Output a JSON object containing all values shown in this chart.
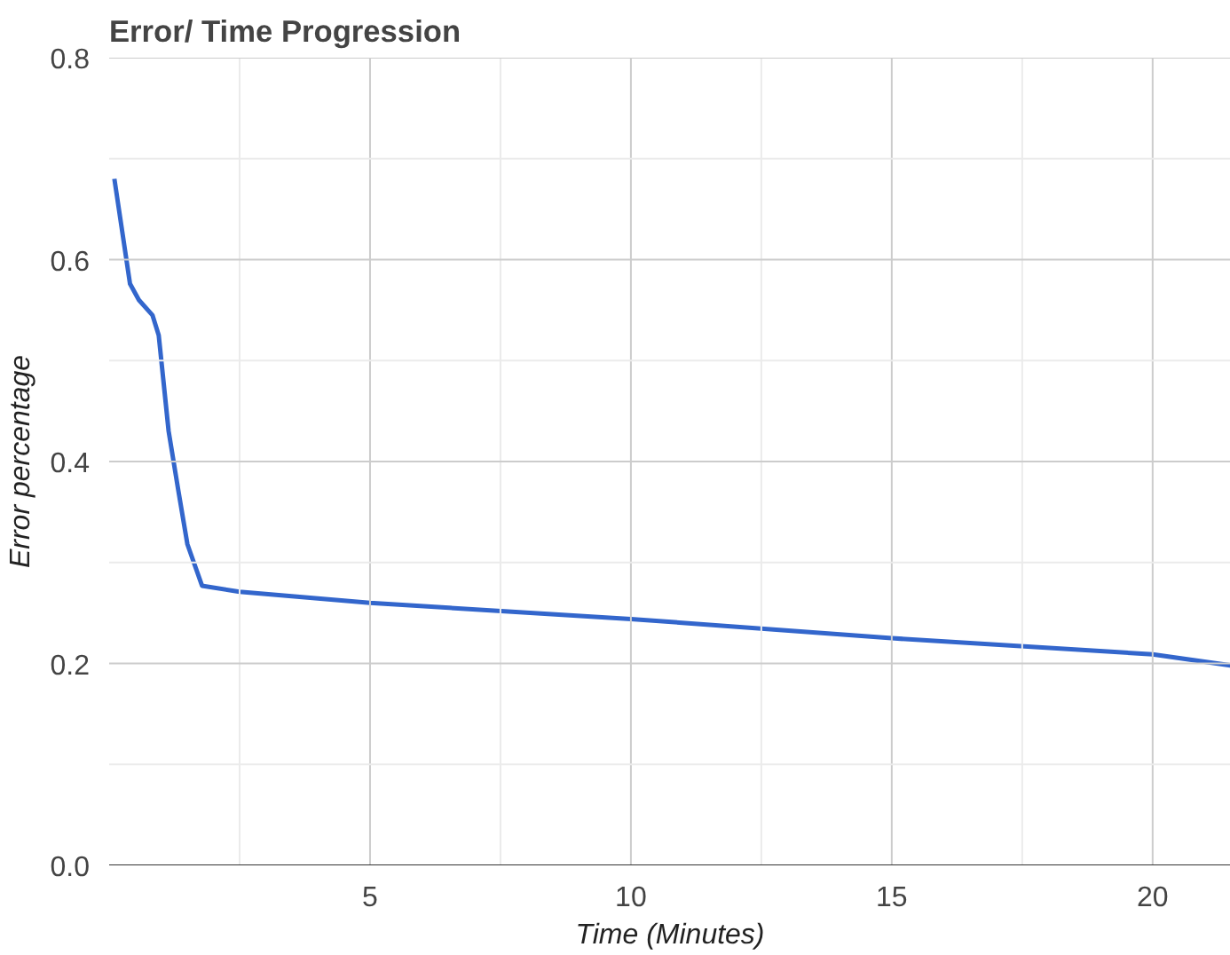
{
  "chart_data": {
    "type": "line",
    "title": "Error/ Time Progression",
    "xlabel": "Time (Minutes)",
    "ylabel": "Error percentage",
    "x": [
      0.1,
      0.4,
      0.57,
      0.83,
      0.95,
      1.14,
      1.33,
      1.5,
      1.78,
      2.5,
      5,
      10,
      15,
      20,
      21.5
    ],
    "series": [
      {
        "color": "#3366cc",
        "values": [
          0.68,
          0.576,
          0.56,
          0.545,
          0.525,
          0.43,
          0.37,
          0.318,
          0.277,
          0.271,
          0.26,
          0.244,
          0.225,
          0.209,
          0.198
        ]
      }
    ],
    "xlim": [
      0,
      21.5
    ],
    "ylim": [
      0,
      0.8
    ],
    "xticks": [
      {
        "value": 2.5,
        "label": null
      },
      5,
      {
        "value": 7.5,
        "label": null
      },
      10,
      {
        "value": 12.5,
        "label": null
      },
      15,
      {
        "value": 17.5,
        "label": null
      },
      20
    ],
    "yticks": [
      {
        "value": 0,
        "label": "0.0"
      },
      {
        "value": 0.1,
        "label": null
      },
      {
        "value": 0.2,
        "label": "0.2"
      },
      {
        "value": 0.3,
        "label": null
      },
      {
        "value": 0.4,
        "label": "0.4"
      },
      {
        "value": 0.5,
        "label": null
      },
      {
        "value": 0.6,
        "label": "0.6"
      },
      {
        "value": 0.7,
        "label": null
      },
      {
        "value": 0.8,
        "label": "0.8"
      }
    ],
    "grid": true,
    "marker": "none",
    "line_style": "solid"
  }
}
